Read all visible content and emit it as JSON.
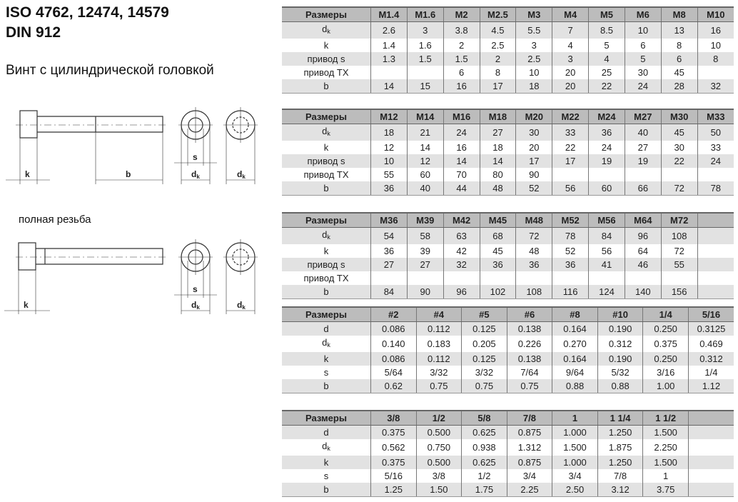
{
  "header": {
    "title_line1": "ISO 4762, 12474, 14579",
    "title_line2": "DIN 912",
    "subtitle": "Винт с цилиндрической головкой"
  },
  "note_full_thread": "полная резьба",
  "drawing_labels": {
    "k": "k",
    "b": "b",
    "s": "s",
    "dk_main": "d",
    "dk_sub": "k"
  },
  "tables": [
    {
      "header": [
        "Размеры",
        "M1.4",
        "M1.6",
        "M2",
        "M2.5",
        "M3",
        "M4",
        "M5",
        "M6",
        "M8",
        "M10"
      ],
      "rows": [
        {
          "label": "d",
          "sub": "k",
          "values": [
            "2.6",
            "3",
            "3.8",
            "4.5",
            "5.5",
            "7",
            "8.5",
            "10",
            "13",
            "16"
          ]
        },
        {
          "label": "k",
          "values": [
            "1.4",
            "1.6",
            "2",
            "2.5",
            "3",
            "4",
            "5",
            "6",
            "8",
            "10"
          ]
        },
        {
          "label": "привод s",
          "values": [
            "1.3",
            "1.5",
            "1.5",
            "2",
            "2.5",
            "3",
            "4",
            "5",
            "6",
            "8"
          ]
        },
        {
          "label": "привод TX",
          "values": [
            "",
            "",
            "6",
            "8",
            "10",
            "20",
            "25",
            "30",
            "45",
            ""
          ]
        },
        {
          "label": "b",
          "values": [
            "14",
            "15",
            "16",
            "17",
            "18",
            "20",
            "22",
            "24",
            "28",
            "32"
          ]
        }
      ]
    },
    {
      "header": [
        "Размеры",
        "M12",
        "M14",
        "M16",
        "M18",
        "M20",
        "M22",
        "M24",
        "M27",
        "M30",
        "M33"
      ],
      "rows": [
        {
          "label": "d",
          "sub": "k",
          "values": [
            "18",
            "21",
            "24",
            "27",
            "30",
            "33",
            "36",
            "40",
            "45",
            "50"
          ]
        },
        {
          "label": "k",
          "values": [
            "12",
            "14",
            "16",
            "18",
            "20",
            "22",
            "24",
            "27",
            "30",
            "33"
          ]
        },
        {
          "label": "привод s",
          "values": [
            "10",
            "12",
            "14",
            "14",
            "17",
            "17",
            "19",
            "19",
            "22",
            "24"
          ]
        },
        {
          "label": "привод TX",
          "values": [
            "55",
            "60",
            "70",
            "80",
            "90",
            "",
            "",
            "",
            "",
            ""
          ]
        },
        {
          "label": "b",
          "values": [
            "36",
            "40",
            "44",
            "48",
            "52",
            "56",
            "60",
            "66",
            "72",
            "78"
          ]
        }
      ]
    },
    {
      "header": [
        "Размеры",
        "M36",
        "M39",
        "M42",
        "M45",
        "M48",
        "M52",
        "M56",
        "M64",
        "M72",
        ""
      ],
      "rows": [
        {
          "label": "d",
          "sub": "k",
          "values": [
            "54",
            "58",
            "63",
            "68",
            "72",
            "78",
            "84",
            "96",
            "108",
            ""
          ]
        },
        {
          "label": "k",
          "values": [
            "36",
            "39",
            "42",
            "45",
            "48",
            "52",
            "56",
            "64",
            "72",
            ""
          ]
        },
        {
          "label": "привод s",
          "values": [
            "27",
            "27",
            "32",
            "36",
            "36",
            "36",
            "41",
            "46",
            "55",
            ""
          ]
        },
        {
          "label": "привод TX",
          "values": [
            "",
            "",
            "",
            "",
            "",
            "",
            "",
            "",
            "",
            ""
          ]
        },
        {
          "label": "b",
          "values": [
            "84",
            "90",
            "96",
            "102",
            "108",
            "116",
            "124",
            "140",
            "156",
            ""
          ]
        }
      ]
    },
    {
      "header": [
        "Размеры",
        "#2",
        "#4",
        "#5",
        "#6",
        "#8",
        "#10",
        "1/4",
        "5/16"
      ],
      "rows": [
        {
          "label": "d",
          "values": [
            "0.086",
            "0.112",
            "0.125",
            "0.138",
            "0.164",
            "0.190",
            "0.250",
            "0.3125"
          ]
        },
        {
          "label": "d",
          "sub": "k",
          "values": [
            "0.140",
            "0.183",
            "0.205",
            "0.226",
            "0.270",
            "0.312",
            "0.375",
            "0.469"
          ]
        },
        {
          "label": "k",
          "values": [
            "0.086",
            "0.112",
            "0.125",
            "0.138",
            "0.164",
            "0.190",
            "0.250",
            "0.312"
          ]
        },
        {
          "label": "s",
          "values": [
            "5/64",
            "3/32",
            "3/32",
            "7/64",
            "9/64",
            "5/32",
            "3/16",
            "1/4"
          ]
        },
        {
          "label": "b",
          "values": [
            "0.62",
            "0.75",
            "0.75",
            "0.75",
            "0.88",
            "0.88",
            "1.00",
            "1.12"
          ]
        }
      ]
    },
    {
      "header": [
        "Размеры",
        "3/8",
        "1/2",
        "5/8",
        "7/8",
        "1",
        "1 1/4",
        "1 1/2",
        ""
      ],
      "rows": [
        {
          "label": "d",
          "values": [
            "0.375",
            "0.500",
            "0.625",
            "0.875",
            "1.000",
            "1.250",
            "1.500",
            ""
          ]
        },
        {
          "label": "d",
          "sub": "k",
          "values": [
            "0.562",
            "0.750",
            "0.938",
            "1.312",
            "1.500",
            "1.875",
            "2.250",
            ""
          ]
        },
        {
          "label": "k",
          "values": [
            "0.375",
            "0.500",
            "0.625",
            "0.875",
            "1.000",
            "1.250",
            "1.500",
            ""
          ]
        },
        {
          "label": "s",
          "values": [
            "5/16",
            "3/8",
            "1/2",
            "3/4",
            "3/4",
            "7/8",
            "1",
            ""
          ]
        },
        {
          "label": "b",
          "values": [
            "1.25",
            "1.50",
            "1.75",
            "2.25",
            "2.50",
            "3.12",
            "3.75",
            ""
          ]
        }
      ]
    }
  ]
}
